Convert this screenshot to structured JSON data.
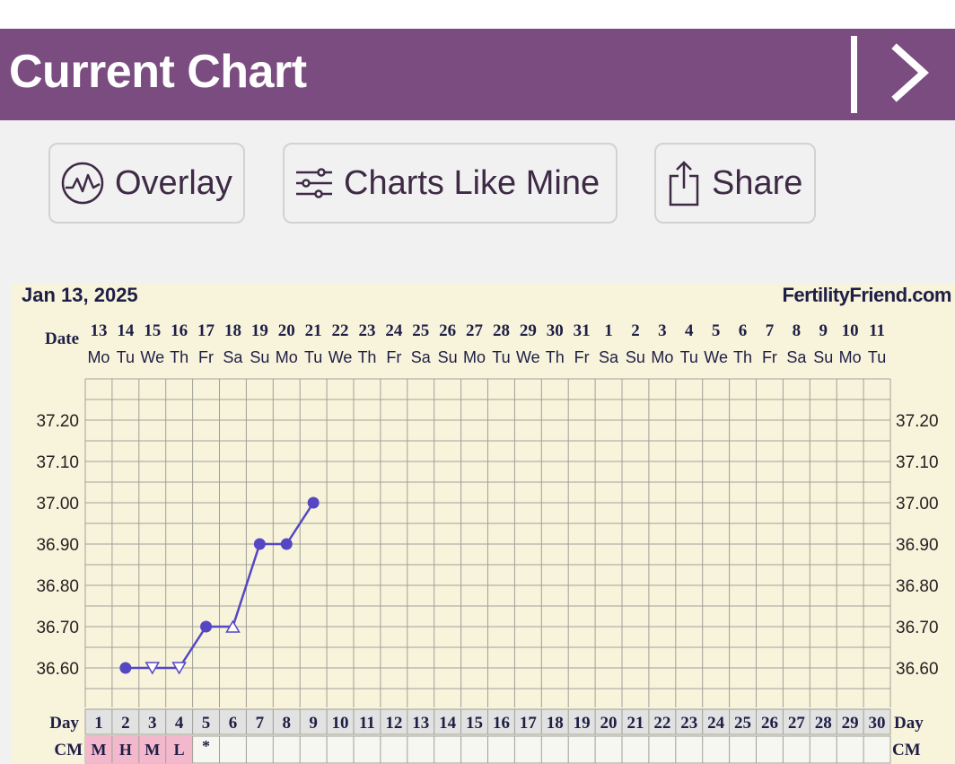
{
  "header": {
    "title": "Current Chart"
  },
  "actions": {
    "overlay": "Overlay",
    "charts_like_mine": "Charts Like Mine",
    "share": "Share"
  },
  "chart_header": {
    "date": "Jan 13, 2025",
    "brand": "FertilityFriend.com"
  },
  "chart_data": {
    "type": "line",
    "row_labels": {
      "date": "Date",
      "day": "Day",
      "cm": "CM"
    },
    "dates": [
      "13",
      "14",
      "15",
      "16",
      "17",
      "18",
      "19",
      "20",
      "21",
      "22",
      "23",
      "24",
      "25",
      "26",
      "27",
      "28",
      "29",
      "30",
      "31",
      "1",
      "2",
      "3",
      "4",
      "5",
      "6",
      "7",
      "8",
      "9",
      "10",
      "11"
    ],
    "weekdays": [
      "Mo",
      "Tu",
      "We",
      "Th",
      "Fr",
      "Sa",
      "Su",
      "Mo",
      "Tu",
      "We",
      "Th",
      "Fr",
      "Sa",
      "Su",
      "Mo",
      "Tu",
      "We",
      "Th",
      "Fr",
      "Sa",
      "Su",
      "Mo",
      "Tu",
      "We",
      "Th",
      "Fr",
      "Sa",
      "Su",
      "Mo",
      "Tu"
    ],
    "cycle_days": [
      "1",
      "2",
      "3",
      "4",
      "5",
      "6",
      "7",
      "8",
      "9",
      "10",
      "11",
      "12",
      "13",
      "14",
      "15",
      "16",
      "17",
      "18",
      "19",
      "20",
      "21",
      "22",
      "23",
      "24",
      "25",
      "26",
      "27",
      "28",
      "29",
      "30"
    ],
    "cm": [
      "M",
      "H",
      "M",
      "L",
      "*",
      "",
      "",
      "",
      "",
      "",
      "",
      "",
      "",
      "",
      "",
      "",
      "",
      "",
      "",
      "",
      "",
      "",
      "",
      "",
      "",
      "",
      "",
      "",
      "",
      ""
    ],
    "cm_highlight": [
      "M",
      "H",
      "L"
    ],
    "yticks": [
      "37.20",
      "37.10",
      "37.00",
      "36.90",
      "36.80",
      "36.70",
      "36.60"
    ],
    "ylim": [
      36.55,
      37.3
    ],
    "temperatures": [
      {
        "day": 2,
        "temp": 36.6,
        "marker": "dot"
      },
      {
        "day": 3,
        "temp": 36.6,
        "marker": "triangle-down"
      },
      {
        "day": 4,
        "temp": 36.6,
        "marker": "triangle-down"
      },
      {
        "day": 5,
        "temp": 36.7,
        "marker": "dot"
      },
      {
        "day": 6,
        "temp": 36.7,
        "marker": "triangle-up"
      },
      {
        "day": 7,
        "temp": 36.9,
        "marker": "dot"
      },
      {
        "day": 8,
        "temp": 36.9,
        "marker": "dot"
      },
      {
        "day": 9,
        "temp": 37.0,
        "marker": "dot"
      }
    ],
    "colors": {
      "line": "#5547c4",
      "grid": "#a0a098",
      "bg": "#f8f3db",
      "cm_fill": "#f4b8cc",
      "row_fill": "#e2e2e2"
    }
  }
}
